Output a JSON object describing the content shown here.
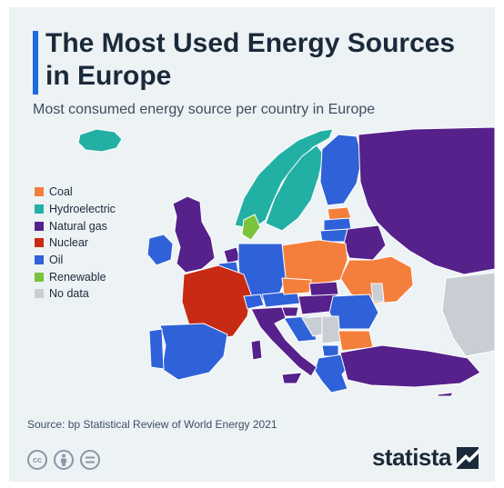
{
  "header": {
    "title": "The Most Used Energy Sources in Europe",
    "subtitle": "Most consumed energy source per country in Europe"
  },
  "legend": {
    "items": [
      {
        "label": "Coal",
        "color": "#f47f3c"
      },
      {
        "label": "Hydroelectric",
        "color": "#23b0a4"
      },
      {
        "label": "Natural gas",
        "color": "#56218a"
      },
      {
        "label": "Nuclear",
        "color": "#c82b13"
      },
      {
        "label": "Oil",
        "color": "#2f62d8"
      },
      {
        "label": "Renewable",
        "color": "#7cc23a"
      },
      {
        "label": "No data",
        "color": "#c9ced4"
      }
    ]
  },
  "footer": {
    "source": "Source: bp Statistical Review of World Energy 2021",
    "brand": "statista",
    "license_icons": [
      "cc-icon",
      "attribution-icon",
      "no-derivatives-icon"
    ]
  }
}
